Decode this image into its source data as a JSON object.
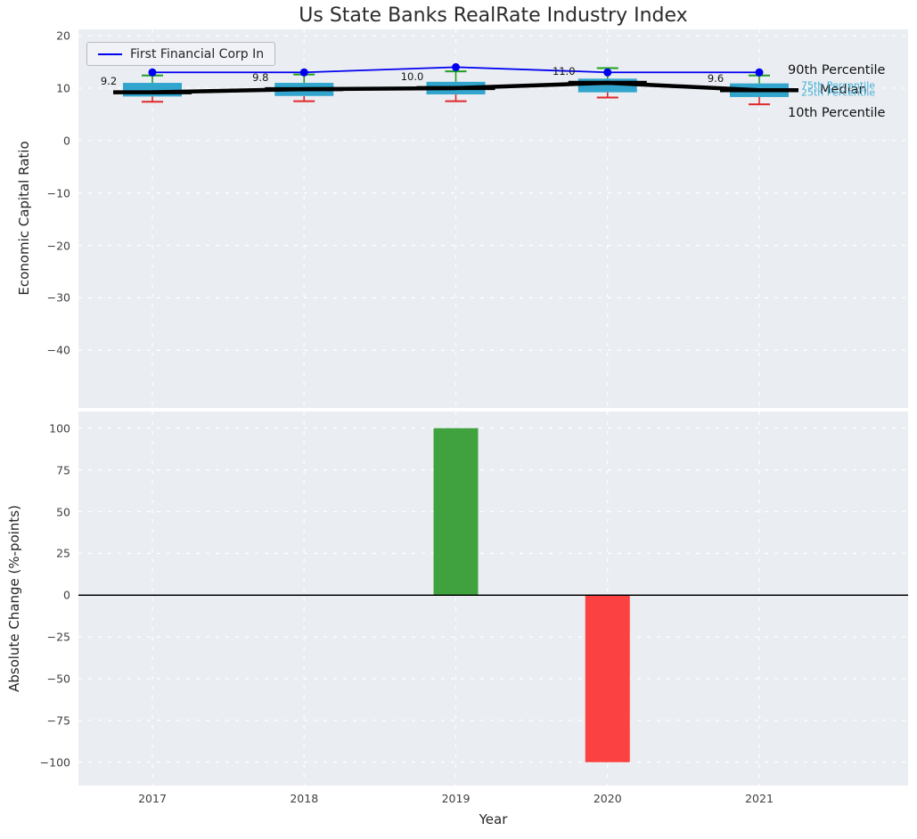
{
  "chart_data": {
    "type": "box",
    "title": "Us State Banks RealRate Industry Index",
    "xlabel": "Year",
    "years": [
      "2017",
      "2018",
      "2019",
      "2020",
      "2021"
    ],
    "legend": {
      "label": "First Financial Corp In"
    },
    "top": {
      "ylabel": "Economic Capital Ratio",
      "ylim": [
        -51,
        21.2
      ],
      "yticks": [
        20,
        10,
        0,
        -10,
        -20,
        -30,
        -40
      ],
      "series": {
        "median": [
          9.2,
          9.8,
          10.0,
          11.0,
          9.6
        ],
        "q1": [
          8.4,
          8.5,
          8.8,
          9.2,
          8.3
        ],
        "q3": [
          11.0,
          11.0,
          11.2,
          11.8,
          10.9
        ],
        "p10": [
          7.4,
          7.5,
          7.5,
          8.2,
          6.9
        ],
        "p90": [
          12.4,
          12.6,
          13.2,
          13.8,
          12.4
        ],
        "company": [
          13.0,
          13.0,
          14.0,
          13.0,
          13.0
        ]
      },
      "median_labels": [
        "9.2",
        "9.8",
        "10.0",
        "11.0",
        "9.6"
      ],
      "annotations": [
        {
          "text": "90th Percentile",
          "ref": "p90",
          "style": "black"
        },
        {
          "text": "Median",
          "ref": "median",
          "style": "black"
        },
        {
          "text": "75th Percentile",
          "ref": "q3",
          "style": "cyan"
        },
        {
          "text": "25th Percentile",
          "ref": "q1",
          "style": "cyan"
        },
        {
          "text": "10th Percentile",
          "ref": "p10",
          "style": "black"
        }
      ]
    },
    "bottom": {
      "ylabel": "Absolute Change (%-points)",
      "ylim": [
        -114,
        110
      ],
      "yticks": [
        100,
        75,
        50,
        25,
        0,
        -25,
        -50,
        -75,
        -100
      ],
      "changes": [
        {
          "year": "2019",
          "value": 100
        },
        {
          "year": "2020",
          "value": -100
        }
      ]
    }
  },
  "colors": {
    "axes_bg": "#eaedf2",
    "grid": "#ffffff",
    "box": "#31a5cd",
    "annotation_cyan": "#45b0d6",
    "text": "#111111",
    "tick": "#3f3f3f",
    "company": "#0000f0",
    "median_line": "#000000",
    "whisker_high": "#1fa01f",
    "whisker_low": "#e02828",
    "bar_up": "#3fa23f",
    "bar_down": "#fb4141",
    "zero_line": "#000000"
  }
}
